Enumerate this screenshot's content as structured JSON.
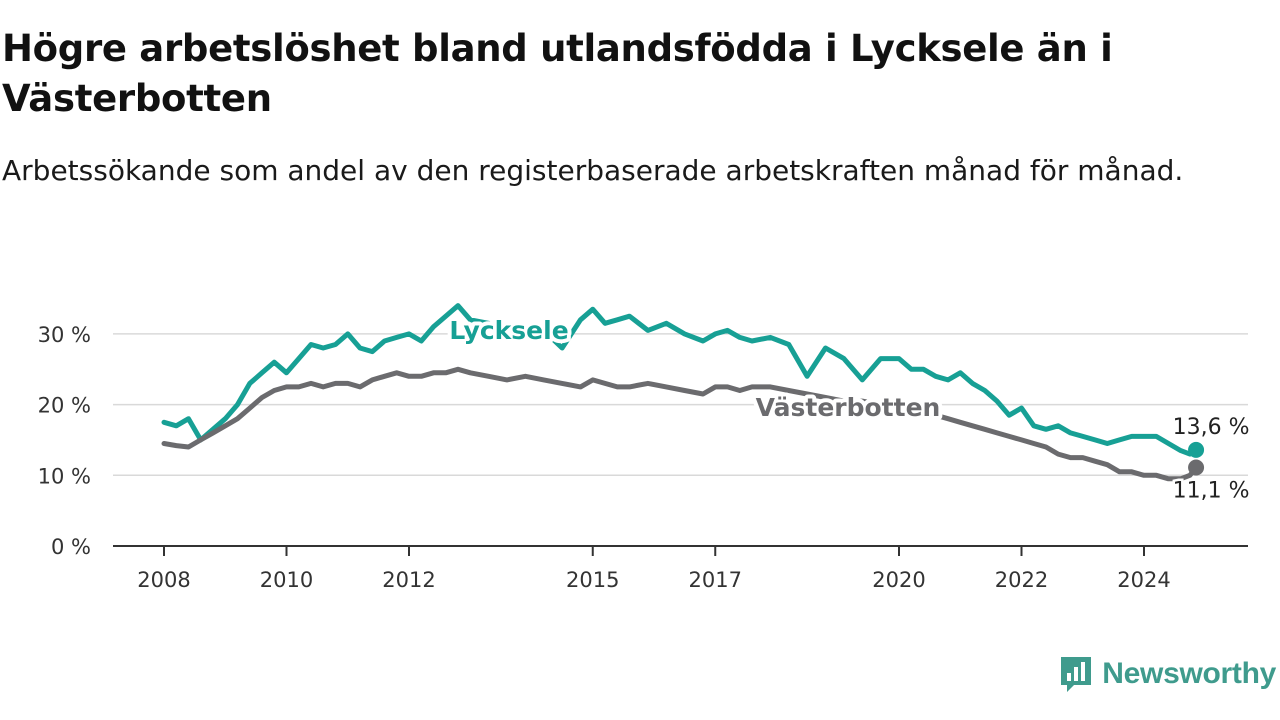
{
  "title": "Högre arbetslöshet bland utlandsfödda i Lycksele än i Västerbotten",
  "subtitle": "Arbetssökande som andel av den registerbaserade arbetskraften månad för månad.",
  "logo_text": "Newsworthy",
  "chart_data": {
    "type": "line",
    "title": "Högre arbetslöshet bland utlandsfödda i Lycksele än i Västerbotten",
    "subtitle": "Arbetssökande som andel av den registerbaserade arbetskraften månad för månad.",
    "xlabel": "",
    "ylabel": "",
    "xlim": [
      2007.95,
      2024.95
    ],
    "ylim": [
      0,
      30
    ],
    "y_ticks": [
      0,
      10,
      20,
      30
    ],
    "y_tick_labels": [
      "0 %",
      "10 %",
      "20 %",
      "30 %"
    ],
    "x_ticks": [
      2008,
      2010,
      2012,
      2015,
      2017,
      2020,
      2022,
      2024
    ],
    "x_tick_labels": [
      "2008",
      "2010",
      "2012",
      "2015",
      "2017",
      "2020",
      "2022",
      "2024"
    ],
    "grid": "horizontal",
    "legend": "none (direct labels)",
    "series": [
      {
        "name": "Lycksele",
        "color": "#17a095",
        "end_label": "13,6 %",
        "x": [
          2008.0,
          2008.2,
          2008.4,
          2008.6,
          2008.8,
          2009.0,
          2009.2,
          2009.4,
          2009.6,
          2009.8,
          2010.0,
          2010.2,
          2010.4,
          2010.6,
          2010.8,
          2011.0,
          2011.2,
          2011.4,
          2011.6,
          2011.8,
          2012.0,
          2012.2,
          2012.4,
          2012.6,
          2012.8,
          2013.0,
          2013.3,
          2013.6,
          2013.9,
          2014.2,
          2014.5,
          2014.8,
          2015.0,
          2015.2,
          2015.4,
          2015.6,
          2015.9,
          2016.2,
          2016.5,
          2016.8,
          2017.0,
          2017.2,
          2017.4,
          2017.6,
          2017.9,
          2018.2,
          2018.5,
          2018.8,
          2019.1,
          2019.4,
          2019.7,
          2020.0,
          2020.2,
          2020.4,
          2020.6,
          2020.8,
          2021.0,
          2021.2,
          2021.4,
          2021.6,
          2021.8,
          2022.0,
          2022.2,
          2022.4,
          2022.6,
          2022.8,
          2023.0,
          2023.2,
          2023.4,
          2023.6,
          2023.8,
          2024.0,
          2024.2,
          2024.4,
          2024.6,
          2024.75,
          2024.85
        ],
        "values": [
          17.5,
          17.0,
          18.0,
          15.0,
          16.5,
          18.0,
          20.0,
          23.0,
          24.5,
          26.0,
          24.5,
          26.5,
          28.5,
          28.0,
          28.5,
          30.0,
          28.0,
          27.5,
          29.0,
          29.5,
          30.0,
          29.0,
          31.0,
          32.5,
          34.0,
          32.0,
          31.5,
          29.5,
          30.5,
          30.5,
          28.0,
          32.0,
          33.5,
          31.5,
          32.0,
          32.5,
          30.5,
          31.5,
          30.0,
          29.0,
          30.0,
          30.5,
          29.5,
          29.0,
          29.5,
          28.5,
          24.0,
          28.0,
          26.5,
          23.5,
          26.5,
          26.5,
          25.0,
          25.0,
          24.0,
          23.5,
          24.5,
          23.0,
          22.0,
          20.5,
          18.5,
          19.5,
          17.0,
          16.5,
          17.0,
          16.0,
          15.5,
          15.0,
          14.5,
          15.0,
          15.5,
          15.5,
          15.5,
          14.5,
          13.5,
          13.0,
          13.6
        ]
      },
      {
        "name": "Västerbotten",
        "color": "#6b6b6e",
        "end_label": "11,1 %",
        "x": [
          2008.0,
          2008.2,
          2008.4,
          2008.6,
          2008.8,
          2009.0,
          2009.2,
          2009.4,
          2009.6,
          2009.8,
          2010.0,
          2010.2,
          2010.4,
          2010.6,
          2010.8,
          2011.0,
          2011.2,
          2011.4,
          2011.6,
          2011.8,
          2012.0,
          2012.2,
          2012.4,
          2012.6,
          2012.8,
          2013.0,
          2013.3,
          2013.6,
          2013.9,
          2014.2,
          2014.5,
          2014.8,
          2015.0,
          2015.2,
          2015.4,
          2015.6,
          2015.9,
          2016.2,
          2016.5,
          2016.8,
          2017.0,
          2017.2,
          2017.4,
          2017.6,
          2017.9,
          2018.2,
          2018.5,
          2018.8,
          2019.1,
          2019.4,
          2019.7,
          2020.0,
          2020.2,
          2020.4,
          2020.6,
          2020.8,
          2021.0,
          2021.2,
          2021.4,
          2021.6,
          2021.8,
          2022.0,
          2022.2,
          2022.4,
          2022.6,
          2022.8,
          2023.0,
          2023.2,
          2023.4,
          2023.6,
          2023.8,
          2024.0,
          2024.2,
          2024.4,
          2024.6,
          2024.75,
          2024.85
        ],
        "values": [
          14.5,
          14.2,
          14.0,
          15.0,
          16.0,
          17.0,
          18.0,
          19.5,
          21.0,
          22.0,
          22.5,
          22.5,
          23.0,
          22.5,
          23.0,
          23.0,
          22.5,
          23.5,
          24.0,
          24.5,
          24.0,
          24.0,
          24.5,
          24.5,
          25.0,
          24.5,
          24.0,
          23.5,
          24.0,
          23.5,
          23.0,
          22.5,
          23.5,
          23.0,
          22.5,
          22.5,
          23.0,
          22.5,
          22.0,
          21.5,
          22.5,
          22.5,
          22.0,
          22.5,
          22.5,
          22.0,
          21.5,
          21.0,
          20.5,
          20.5,
          20.0,
          19.5,
          19.5,
          19.0,
          18.5,
          18.0,
          17.5,
          17.0,
          16.5,
          16.0,
          15.5,
          15.0,
          14.5,
          14.0,
          13.0,
          12.5,
          12.5,
          12.0,
          11.5,
          10.5,
          10.5,
          10.0,
          10.0,
          9.5,
          9.5,
          10.0,
          11.1
        ]
      }
    ]
  }
}
